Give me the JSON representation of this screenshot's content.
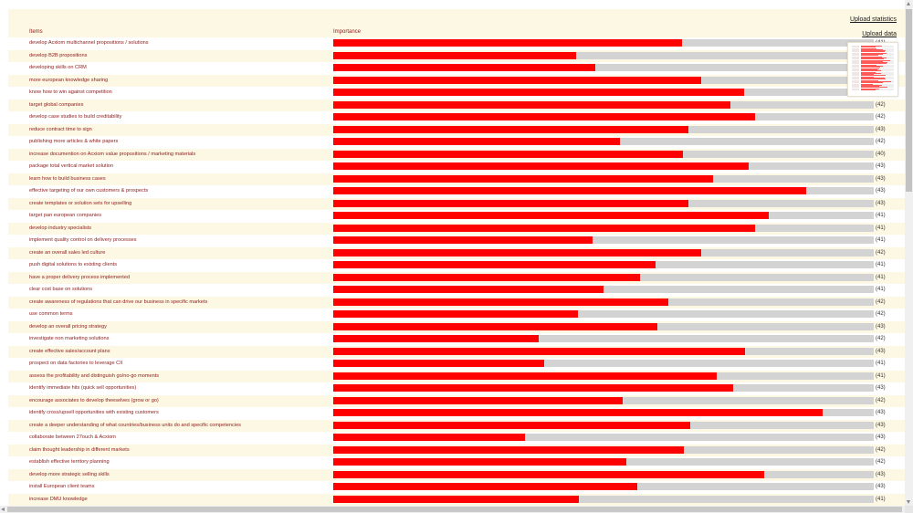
{
  "links": {
    "upload_statistics": "Upload statistics",
    "upload_data": "Upload data"
  },
  "headers": {
    "items": "Items",
    "importance": "Importance"
  },
  "colors": {
    "bar_fill": "#ff0000",
    "bar_track": "#d3d3d3",
    "label": "#8b1a1a",
    "panel_bg": "#fdf8e3"
  },
  "items": [
    {
      "label": "develop Acxiom multichannel propositions / solutions",
      "importance": 0.645,
      "count": "(41)"
    },
    {
      "label": "develop B2B propositions",
      "importance": 0.45,
      "count": "(41)"
    },
    {
      "label": "developing skills on CRM",
      "importance": 0.485,
      "count": "(41)"
    },
    {
      "label": "more european knowledge sharing",
      "importance": 0.68,
      "count": "(41)"
    },
    {
      "label": "know how to win against competition",
      "importance": 0.76,
      "count": "(41)"
    },
    {
      "label": "target global companies",
      "importance": 0.735,
      "count": "(42)"
    },
    {
      "label": "develop case studies to build creditability",
      "importance": 0.78,
      "count": "(42)"
    },
    {
      "label": "reduce contract time to sign",
      "importance": 0.657,
      "count": "(43)"
    },
    {
      "label": "publishing more articles & white papers",
      "importance": 0.53,
      "count": "(42)"
    },
    {
      "label": "increase documention on Acxiom value propositions / marketing materials",
      "importance": 0.647,
      "count": "(40)"
    },
    {
      "label": "package total vertical market solution",
      "importance": 0.768,
      "count": "(43)"
    },
    {
      "label": "learn how to build business cases",
      "importance": 0.703,
      "count": "(43)"
    },
    {
      "label": "effective targeting of our own customers & prospects",
      "importance": 0.875,
      "count": "(43)"
    },
    {
      "label": "create templates or solution sets for upselling",
      "importance": 0.657,
      "count": "(43)"
    },
    {
      "label": "target pan european companies",
      "importance": 0.805,
      "count": "(41)"
    },
    {
      "label": "develop industry specialists",
      "importance": 0.78,
      "count": "(41)"
    },
    {
      "label": "implement quality control on delivery processes",
      "importance": 0.48,
      "count": "(41)"
    },
    {
      "label": "create an overall sales led culture",
      "importance": 0.68,
      "count": "(42)"
    },
    {
      "label": "push digital solutions to existing clients",
      "importance": 0.597,
      "count": "(41)"
    },
    {
      "label": "have a proper delivery process implemented",
      "importance": 0.568,
      "count": "(41)"
    },
    {
      "label": "clear cost base on solutions",
      "importance": 0.5,
      "count": "(41)"
    },
    {
      "label": "create awareness of regulations that can drive our business in specific markets",
      "importance": 0.62,
      "count": "(42)"
    },
    {
      "label": "use common terms",
      "importance": 0.453,
      "count": "(42)"
    },
    {
      "label": "develop an overall pricing strategy",
      "importance": 0.6,
      "count": "(43)"
    },
    {
      "label": "investigate non marketing solutions",
      "importance": 0.38,
      "count": "(42)"
    },
    {
      "label": "create effective sales/account plans",
      "importance": 0.762,
      "count": "(43)"
    },
    {
      "label": "prospect on data factories to leverage CII",
      "importance": 0.39,
      "count": "(41)"
    },
    {
      "label": "assess the profitability and distinguish go/no-go moments",
      "importance": 0.71,
      "count": "(41)"
    },
    {
      "label": "identify immediate hits (quick sell opportunities)",
      "importance": 0.74,
      "count": "(43)"
    },
    {
      "label": "encourage associates to develop theeselves (grow or go)",
      "importance": 0.535,
      "count": "(42)"
    },
    {
      "label": "identify cross/upsell opportunities with existing customers",
      "importance": 0.905,
      "count": "(43)"
    },
    {
      "label": "create a deeper understanding of what countries/business units do and specific competencies",
      "importance": 0.66,
      "count": "(43)"
    },
    {
      "label": "collaborate between 27ouch & Acxiom",
      "importance": 0.355,
      "count": "(43)"
    },
    {
      "label": "claim thought leadership in different markets",
      "importance": 0.648,
      "count": "(42)"
    },
    {
      "label": "establish effective territory planning",
      "importance": 0.543,
      "count": "(42)"
    },
    {
      "label": "develop more strategic selling skills",
      "importance": 0.797,
      "count": "(43)"
    },
    {
      "label": "install European client teams",
      "importance": 0.563,
      "count": "(43)"
    },
    {
      "label": "increase DMU knowledge",
      "importance": 0.455,
      "count": "(41)"
    }
  ]
}
